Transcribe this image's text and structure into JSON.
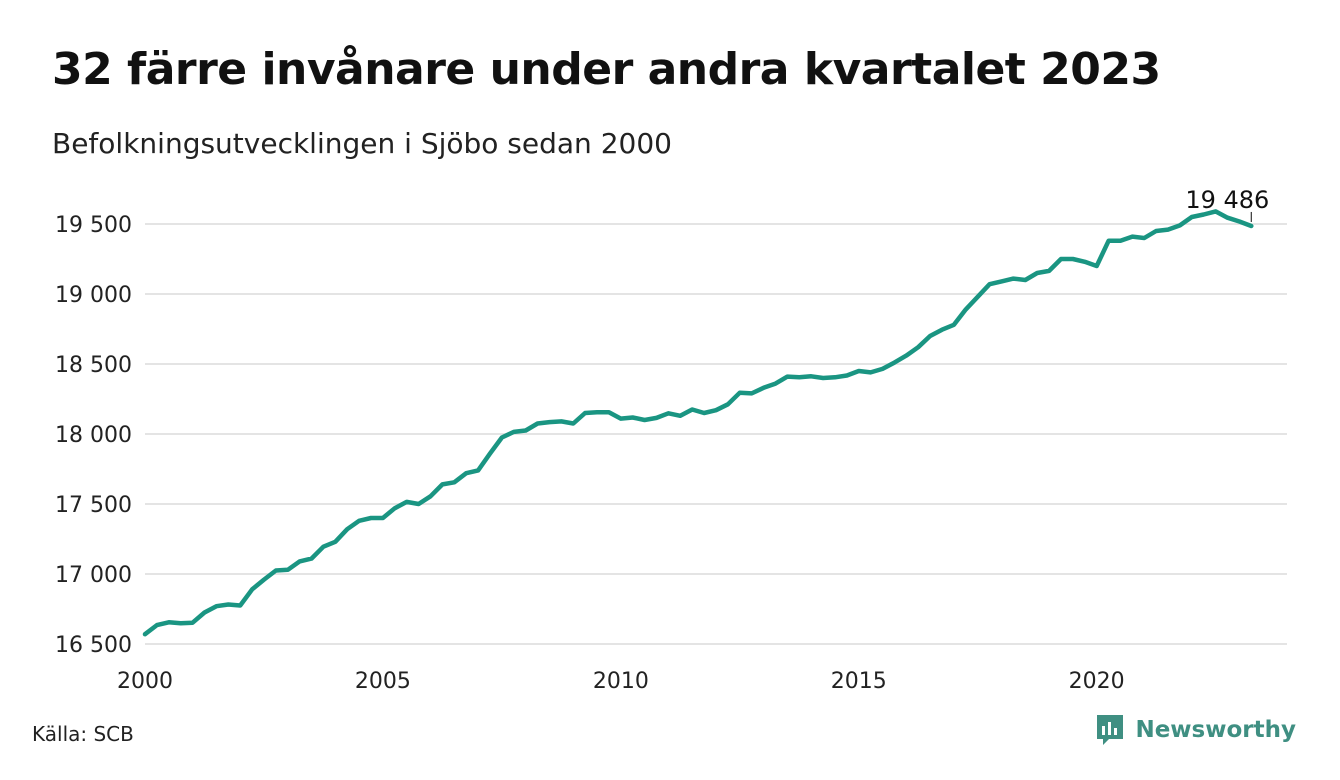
{
  "title": "32 färre invånare under andra kvartalet 2023",
  "subtitle": "Befolkningsutvecklingen i Sjöbo sedan 2000",
  "source": "Källa: SCB",
  "brand": {
    "name": "Newsworthy",
    "icon": "newsworthy-logo-icon",
    "color": "#3f8f82"
  },
  "chart_data": {
    "type": "line",
    "title": "32 färre invånare under andra kvartalet 2023",
    "subtitle": "Befolkningsutvecklingen i Sjöbo sedan 2000",
    "x_start": 2000,
    "x_step": 0.25,
    "xlim": [
      2000,
      2024
    ],
    "x_ticks": [
      2000,
      2005,
      2010,
      2015,
      2020
    ],
    "x_tick_labels": [
      "2000",
      "2005",
      "2010",
      "2015",
      "2020"
    ],
    "ylim": [
      16500,
      19600
    ],
    "y_ticks": [
      16500,
      17000,
      17500,
      18000,
      18500,
      19000,
      19500
    ],
    "y_tick_labels": [
      "16 500",
      "17 000",
      "17 500",
      "18 000",
      "18 500",
      "19 000",
      "19 500"
    ],
    "grid": true,
    "line_color": "#1a9582",
    "series": [
      {
        "values": [
          16570,
          16635,
          16655,
          16648,
          16652,
          16725,
          16770,
          16782,
          16775,
          16890,
          16960,
          17025,
          17030,
          17090,
          17110,
          17195,
          17230,
          17320,
          17380,
          17400,
          17400,
          17470,
          17515,
          17500,
          17555,
          17640,
          17655,
          17720,
          17740,
          17860,
          17975,
          18015,
          18025,
          18075,
          18085,
          18090,
          18075,
          18150,
          18155,
          18155,
          18110,
          18118,
          18100,
          18115,
          18148,
          18130,
          18175,
          18150,
          18170,
          18212,
          18295,
          18290,
          18330,
          18360,
          18410,
          18405,
          18412,
          18400,
          18405,
          18418,
          18450,
          18440,
          18465,
          18510,
          18560,
          18620,
          18700,
          18745,
          18780,
          18890,
          18980,
          19070,
          19090,
          19110,
          19100,
          19150,
          19165,
          19250,
          19250,
          19230,
          19200,
          19380,
          19380,
          19410,
          19400,
          19450,
          19460,
          19490,
          19550,
          19568,
          19590,
          19545,
          19518,
          19486
        ]
      }
    ],
    "annotation": {
      "label": "19 486",
      "value": 19486
    }
  }
}
